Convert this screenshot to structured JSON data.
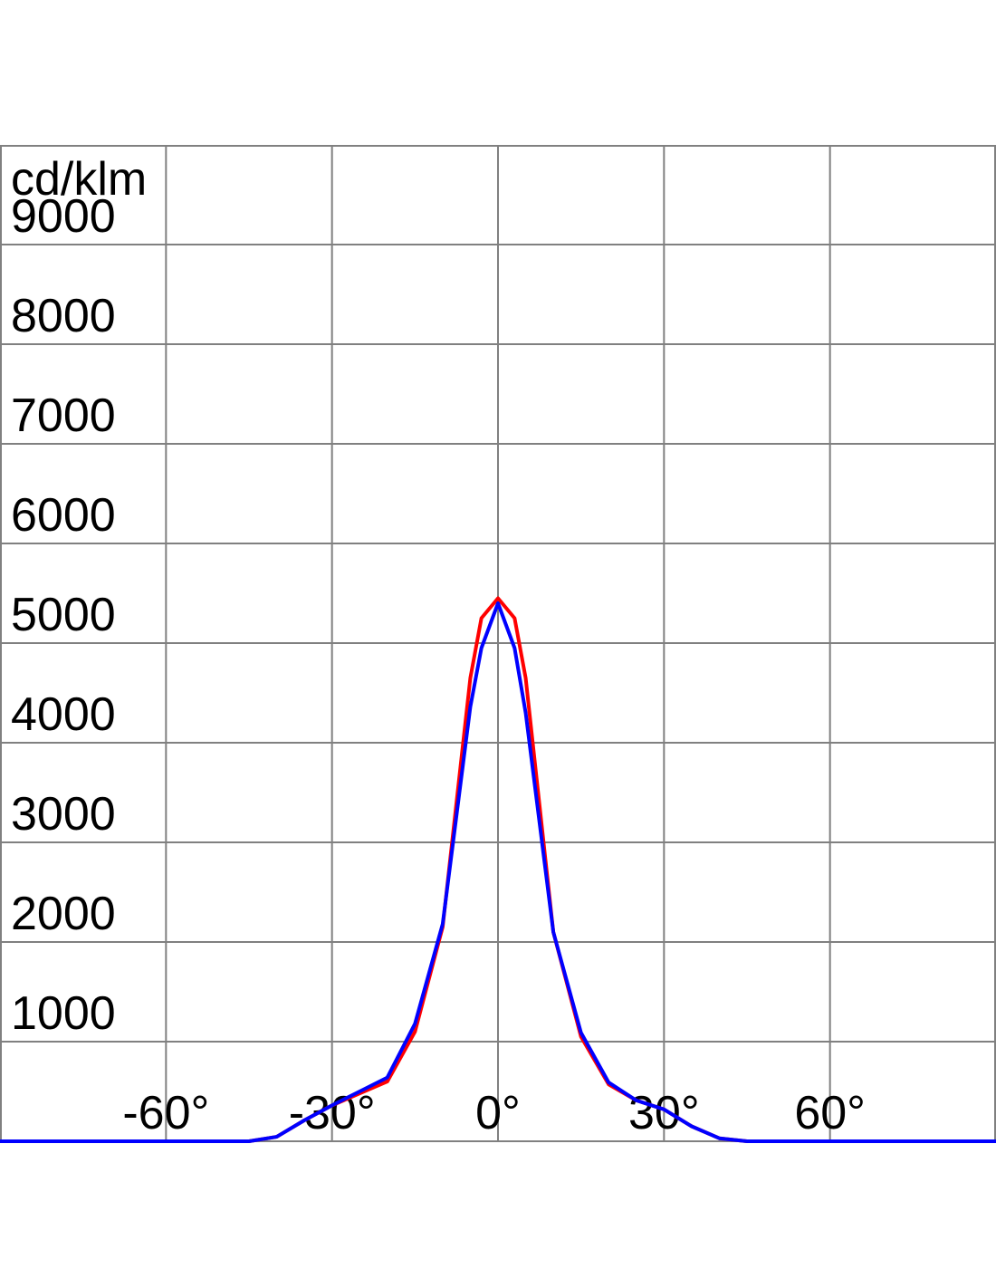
{
  "chart_data": {
    "type": "line",
    "y_label": "cd/klm",
    "x": [
      -90,
      -45,
      -40,
      -35,
      -30,
      -25,
      -20,
      -15,
      -10,
      -5,
      -3,
      0,
      3,
      5,
      10,
      15,
      20,
      25,
      30,
      35,
      40,
      45,
      90
    ],
    "series": [
      {
        "color": "#ff0000",
        "values": [
          0,
          0,
          45,
          210,
          360,
          480,
          600,
          1100,
          2150,
          4650,
          5250,
          5450,
          5250,
          4650,
          2100,
          1050,
          570,
          410,
          320,
          150,
          30,
          0,
          0
        ]
      },
      {
        "color": "#0000ff",
        "values": [
          0,
          0,
          45,
          210,
          360,
          500,
          640,
          1180,
          2180,
          4360,
          4950,
          5400,
          4950,
          4300,
          2100,
          1090,
          590,
          410,
          320,
          150,
          30,
          0,
          0
        ]
      }
    ],
    "xlim": [
      -90,
      90
    ],
    "xticks": [
      {
        "value": -60,
        "label": "-60°"
      },
      {
        "value": -30,
        "label": "-30°"
      },
      {
        "value": 0,
        "label": "0°"
      },
      {
        "value": 30,
        "label": "30°"
      },
      {
        "value": 60,
        "label": "60°"
      }
    ],
    "ylim": [
      0,
      10000
    ],
    "yticks": [
      1000,
      2000,
      3000,
      4000,
      5000,
      6000,
      7000,
      8000,
      9000
    ],
    "grid": true
  }
}
